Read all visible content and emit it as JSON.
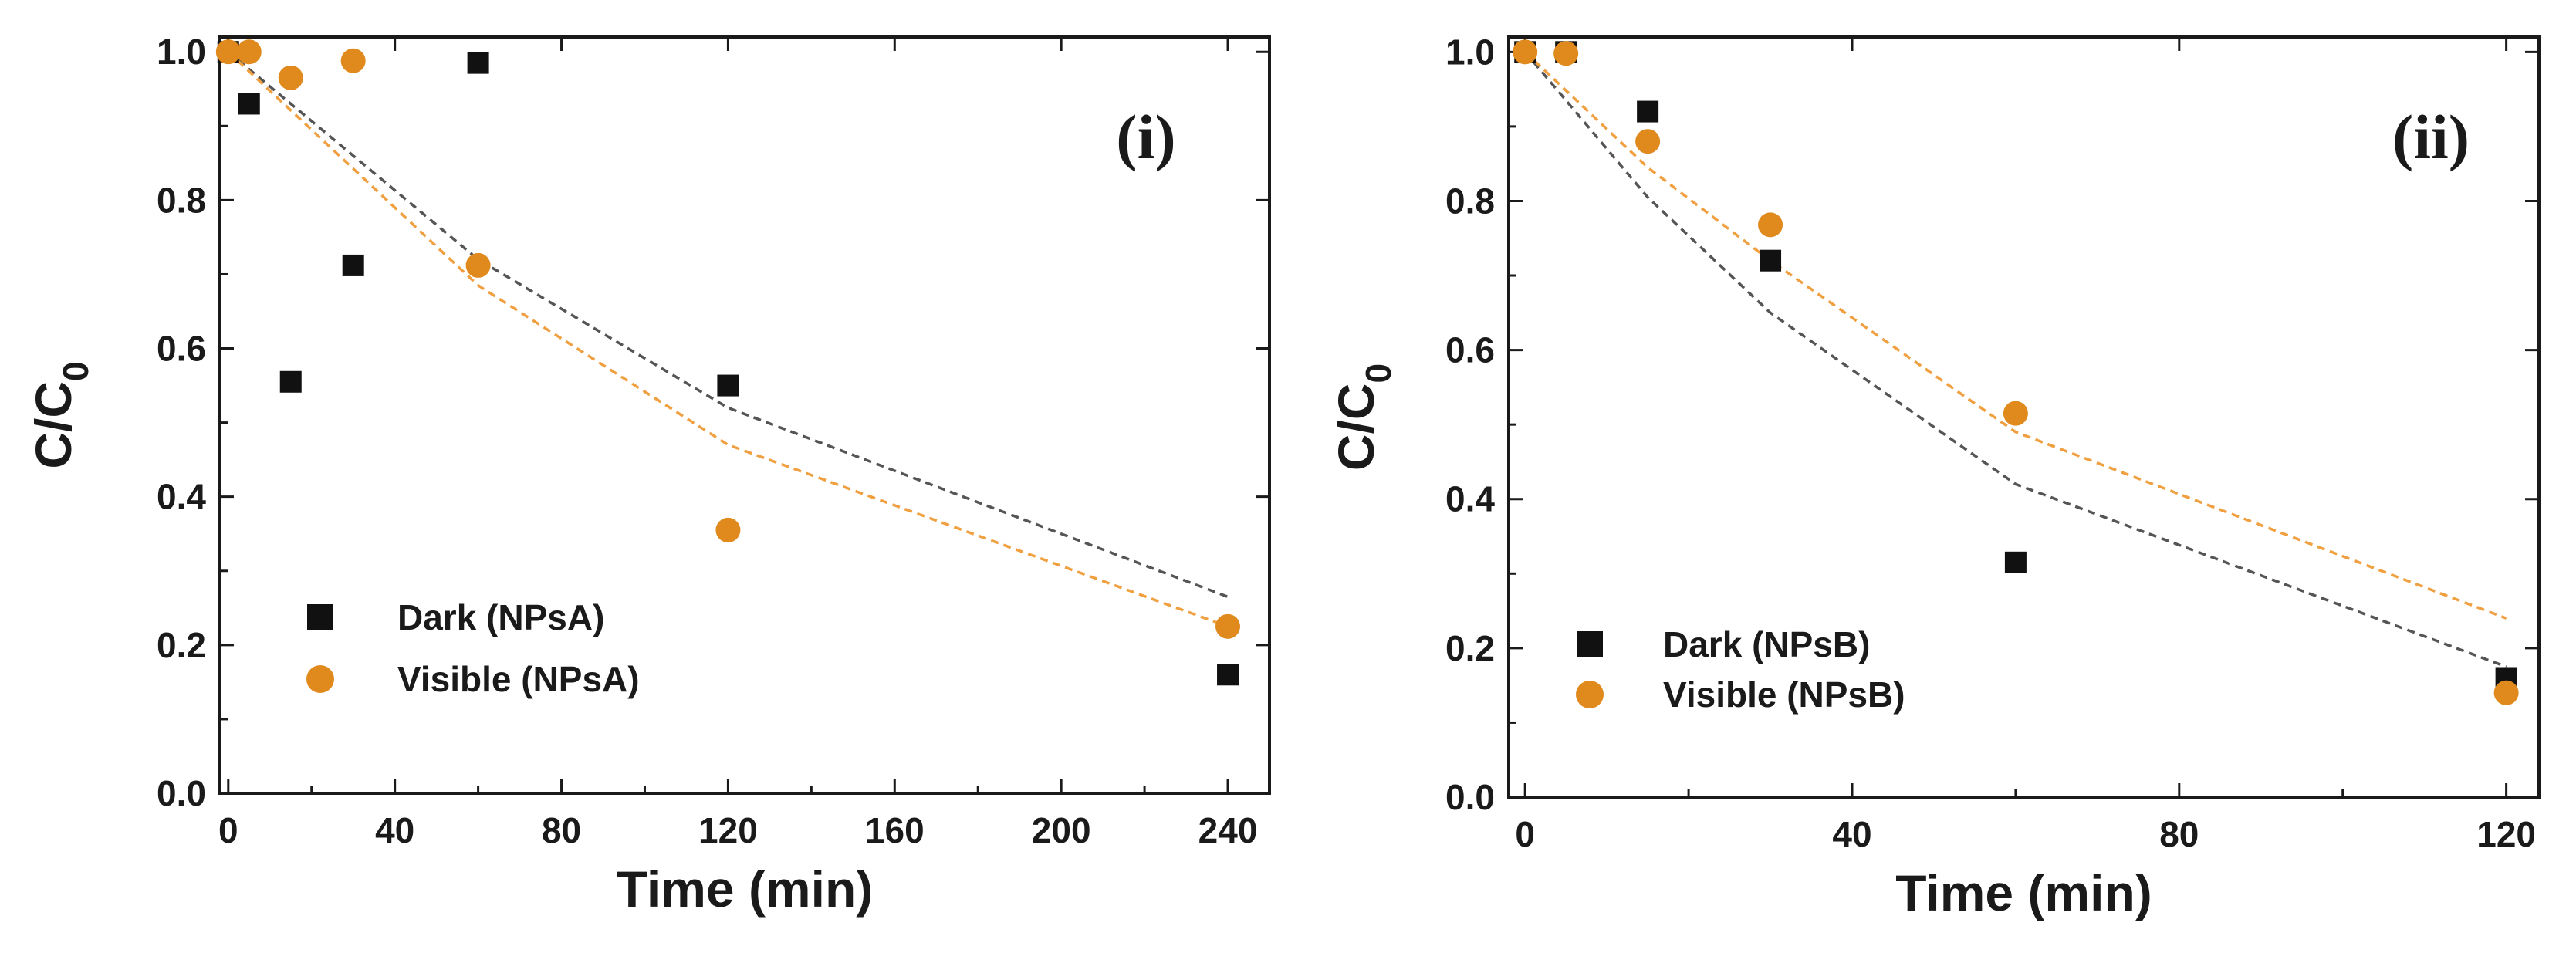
{
  "chart_data": [
    {
      "type": "scatter",
      "panel_label": "(i)",
      "xlabel": "Time (min)",
      "ylabel": "C/C",
      "ylabel_sub": "0",
      "xlim": [
        -2,
        250
      ],
      "ylim": [
        0,
        1.02
      ],
      "xticks": [
        0,
        40,
        80,
        120,
        160,
        200,
        240
      ],
      "xtick_labels": [
        "0",
        "40",
        "80",
        "120",
        "160",
        "200",
        "240"
      ],
      "yticks": [
        0,
        0.2,
        0.4,
        0.6,
        0.8,
        1.0
      ],
      "ytick_labels": [
        "0.0",
        "0.2",
        "0.4",
        "0.6",
        "0.8",
        "1.0"
      ],
      "legend_position": "bottom-left",
      "series": [
        {
          "name": "Dark (NPsA)",
          "marker": "square",
          "color": "#111111",
          "x": [
            0,
            5,
            15,
            30,
            60,
            120,
            240
          ],
          "y": [
            1.0,
            0.93,
            0.555,
            0.712,
            0.985,
            0.55,
            0.16
          ],
          "fit": {
            "color": "#555555",
            "x": [
              0,
              60,
              120,
              240
            ],
            "y": [
              1.0,
              0.72,
              0.52,
              0.265
            ]
          }
        },
        {
          "name": "Visible (NPsA)",
          "marker": "circle",
          "color": "#e08a1e",
          "x": [
            0,
            5,
            15,
            30,
            60,
            120,
            240
          ],
          "y": [
            1.0,
            1.0,
            0.965,
            0.988,
            0.712,
            0.355,
            0.225
          ],
          "fit": {
            "color": "#f0a040",
            "x": [
              0,
              60,
              120,
              240
            ],
            "y": [
              1.0,
              0.685,
              0.47,
              0.225
            ]
          }
        }
      ]
    },
    {
      "type": "scatter",
      "panel_label": "(ii)",
      "xlabel": "Time (min)",
      "ylabel": "C/C",
      "ylabel_sub": "0",
      "xlim": [
        -2,
        124
      ],
      "ylim": [
        0,
        1.02
      ],
      "xticks": [
        0,
        40,
        80,
        120
      ],
      "xtick_labels": [
        "0",
        "40",
        "80",
        "120"
      ],
      "yticks": [
        0,
        0.2,
        0.4,
        0.6,
        0.8,
        1.0
      ],
      "ytick_labels": [
        "0.0",
        "0.2",
        "0.4",
        "0.6",
        "0.8",
        "1.0"
      ],
      "legend_position": "bottom-left",
      "series": [
        {
          "name": "Dark (NPsB)",
          "marker": "square",
          "color": "#111111",
          "x": [
            0,
            5,
            15,
            30,
            60,
            120
          ],
          "y": [
            1.0,
            1.0,
            0.92,
            0.72,
            0.315,
            0.16
          ],
          "fit": {
            "color": "#555555",
            "x": [
              0,
              15,
              30,
              60,
              120
            ],
            "y": [
              1.0,
              0.805,
              0.65,
              0.42,
              0.175
            ]
          }
        },
        {
          "name": "Visible (NPsB)",
          "marker": "circle",
          "color": "#e08a1e",
          "x": [
            0,
            5,
            15,
            30,
            60,
            120
          ],
          "y": [
            1.0,
            0.998,
            0.88,
            0.768,
            0.515,
            0.14
          ],
          "fit": {
            "color": "#f0a040",
            "x": [
              0,
              15,
              30,
              60,
              120
            ],
            "y": [
              1.0,
              0.845,
              0.72,
              0.49,
              0.24
            ]
          }
        }
      ]
    }
  ]
}
